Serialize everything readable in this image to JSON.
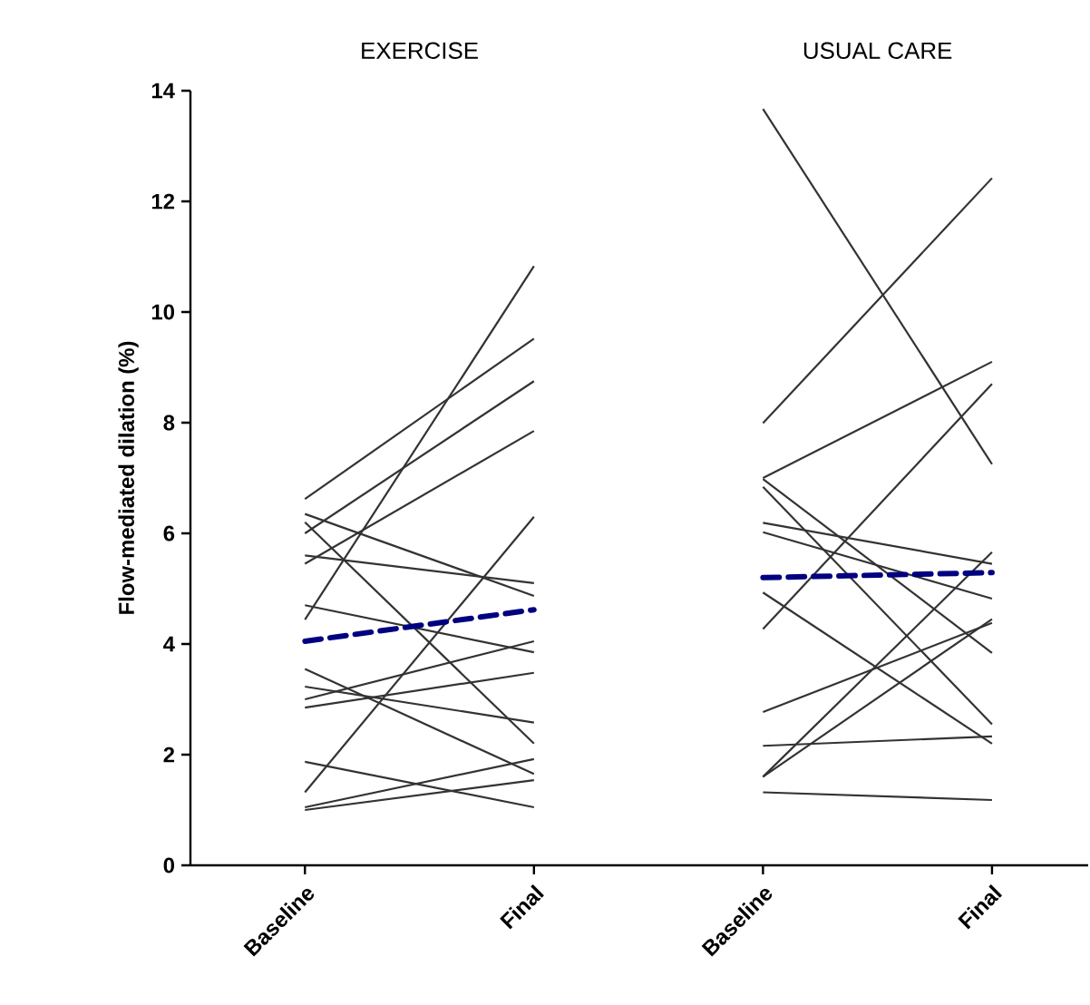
{
  "chart_data": {
    "type": "line",
    "ylabel": "Flow-mediated dilation (%)",
    "annotations": [
      "EXERCISE",
      "USUAL CARE"
    ],
    "categories": [
      "Baseline",
      "Final",
      "Baseline",
      "Final"
    ],
    "ylim": [
      0,
      14
    ],
    "yticks": [
      0,
      2,
      4,
      6,
      8,
      10,
      12,
      14
    ],
    "grid": false,
    "marker": "none",
    "series": [
      {
        "color": "#333333",
        "values": [
          6.62,
          9.52,
          null,
          null
        ]
      },
      {
        "color": "#333333",
        "values": [
          6.35,
          4.87,
          null,
          null
        ]
      },
      {
        "color": "#333333",
        "values": [
          6.2,
          2.2,
          null,
          null
        ]
      },
      {
        "color": "#333333",
        "values": [
          6.0,
          8.75,
          null,
          null
        ]
      },
      {
        "color": "#333333",
        "values": [
          5.6,
          5.1,
          null,
          null
        ]
      },
      {
        "color": "#333333",
        "values": [
          5.45,
          7.85,
          null,
          null
        ]
      },
      {
        "color": "#333333",
        "values": [
          4.7,
          3.85,
          null,
          null
        ]
      },
      {
        "color": "#333333",
        "values": [
          4.44,
          10.83,
          null,
          null
        ]
      },
      {
        "color": "#333333",
        "values": [
          3.55,
          1.65,
          null,
          null
        ]
      },
      {
        "color": "#333333",
        "values": [
          3.23,
          2.58,
          null,
          null
        ]
      },
      {
        "color": "#333333",
        "values": [
          3.0,
          4.05,
          null,
          null
        ]
      },
      {
        "color": "#333333",
        "values": [
          2.85,
          3.48,
          null,
          null
        ]
      },
      {
        "color": "#333333",
        "values": [
          1.87,
          1.05,
          null,
          null
        ]
      },
      {
        "color": "#333333",
        "values": [
          1.32,
          6.3,
          null,
          null
        ]
      },
      {
        "color": "#333333",
        "values": [
          1.05,
          1.92,
          null,
          null
        ]
      },
      {
        "color": "#333333",
        "values": [
          1.0,
          1.54,
          null,
          null
        ]
      },
      {
        "color": "#333333",
        "values": [
          null,
          null,
          13.67,
          7.25
        ]
      },
      {
        "color": "#333333",
        "values": [
          null,
          null,
          7.99,
          12.42
        ]
      },
      {
        "color": "#333333",
        "values": [
          null,
          null,
          7.0,
          9.1
        ]
      },
      {
        "color": "#333333",
        "values": [
          null,
          null,
          6.98,
          3.84
        ]
      },
      {
        "color": "#333333",
        "values": [
          null,
          null,
          6.84,
          2.55
        ]
      },
      {
        "color": "#333333",
        "values": [
          null,
          null,
          6.19,
          5.45
        ]
      },
      {
        "color": "#333333",
        "values": [
          null,
          null,
          6.02,
          4.82
        ]
      },
      {
        "color": "#333333",
        "values": [
          null,
          null,
          4.93,
          2.2
        ]
      },
      {
        "color": "#333333",
        "values": [
          null,
          null,
          4.27,
          8.7
        ]
      },
      {
        "color": "#333333",
        "values": [
          null,
          null,
          2.77,
          4.38
        ]
      },
      {
        "color": "#333333",
        "values": [
          null,
          null,
          2.16,
          2.33
        ]
      },
      {
        "color": "#333333",
        "values": [
          null,
          null,
          1.6,
          5.66
        ]
      },
      {
        "color": "#333333",
        "values": [
          null,
          null,
          1.6,
          4.45
        ]
      },
      {
        "color": "#333333",
        "values": [
          null,
          null,
          1.32,
          1.18
        ]
      },
      {
        "color": "#000080",
        "line_style": "dashed",
        "values": [
          4.05,
          4.62,
          null,
          null
        ]
      },
      {
        "color": "#000080",
        "line_style": "dashed",
        "values": [
          null,
          null,
          5.2,
          5.29
        ]
      }
    ]
  }
}
